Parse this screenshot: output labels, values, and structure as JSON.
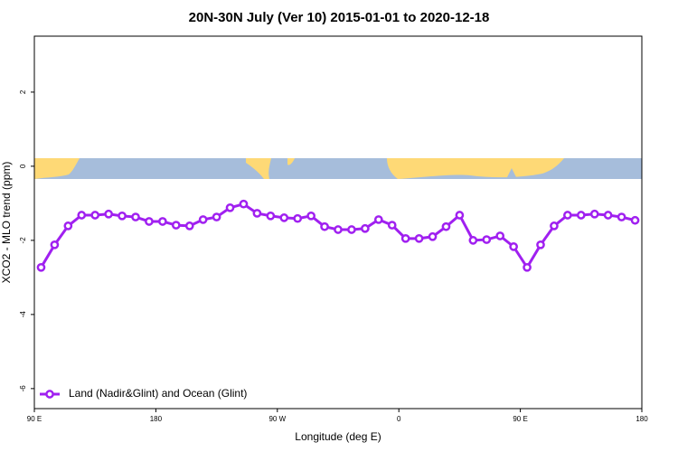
{
  "chart_data": {
    "type": "line",
    "title": "20N-30N July (Ver 10)   2015-01-01 to 2020-12-18",
    "xlabel": "Longitude (deg E)",
    "ylabel": "XCO2 - MLO trend (ppm)",
    "x": [
      95,
      105,
      115,
      125,
      135,
      145,
      155,
      165,
      175,
      185,
      195,
      205,
      215,
      225,
      235,
      245,
      255,
      265,
      275,
      285,
      295,
      305,
      315,
      325,
      335,
      345,
      355,
      365,
      375,
      385,
      395,
      405,
      415,
      425,
      435,
      445,
      455,
      465,
      475,
      485,
      495,
      505,
      515,
      525,
      535
    ],
    "series": [
      {
        "name": "Land (Nadir&Glint) and Ocean (Glint)",
        "color": "#a020f0",
        "values": [
          -2.73,
          -2.12,
          -1.61,
          -1.32,
          -1.32,
          -1.29,
          -1.34,
          -1.37,
          -1.49,
          -1.49,
          -1.59,
          -1.61,
          -1.44,
          -1.37,
          -1.12,
          -1.02,
          -1.27,
          -1.34,
          -1.39,
          -1.41,
          -1.34,
          -1.63,
          -1.71,
          -1.71,
          -1.68,
          -1.44,
          -1.59,
          -1.95,
          -1.95,
          -1.9,
          -1.63,
          -1.32,
          -2.0,
          -1.98,
          -1.88,
          -2.17,
          -2.73,
          -2.12,
          -1.61,
          -1.32,
          -1.32,
          -1.29,
          -1.32,
          -1.37,
          -1.46
        ]
      }
    ],
    "xlim": [
      90,
      540
    ],
    "xticks": [
      {
        "value": 90,
        "label": "90 E"
      },
      180,
      {
        "value": 270,
        "label": "90 W"
      },
      {
        "value": 360,
        "label": "0"
      },
      {
        "value": 450,
        "label": "90 E"
      },
      {
        "value": 540,
        "label": "180"
      }
    ],
    "ylim": [
      -6.54,
      3.51
    ],
    "yticks": [
      2,
      0,
      -2,
      -4,
      -6
    ],
    "legend": "bottom-left"
  }
}
